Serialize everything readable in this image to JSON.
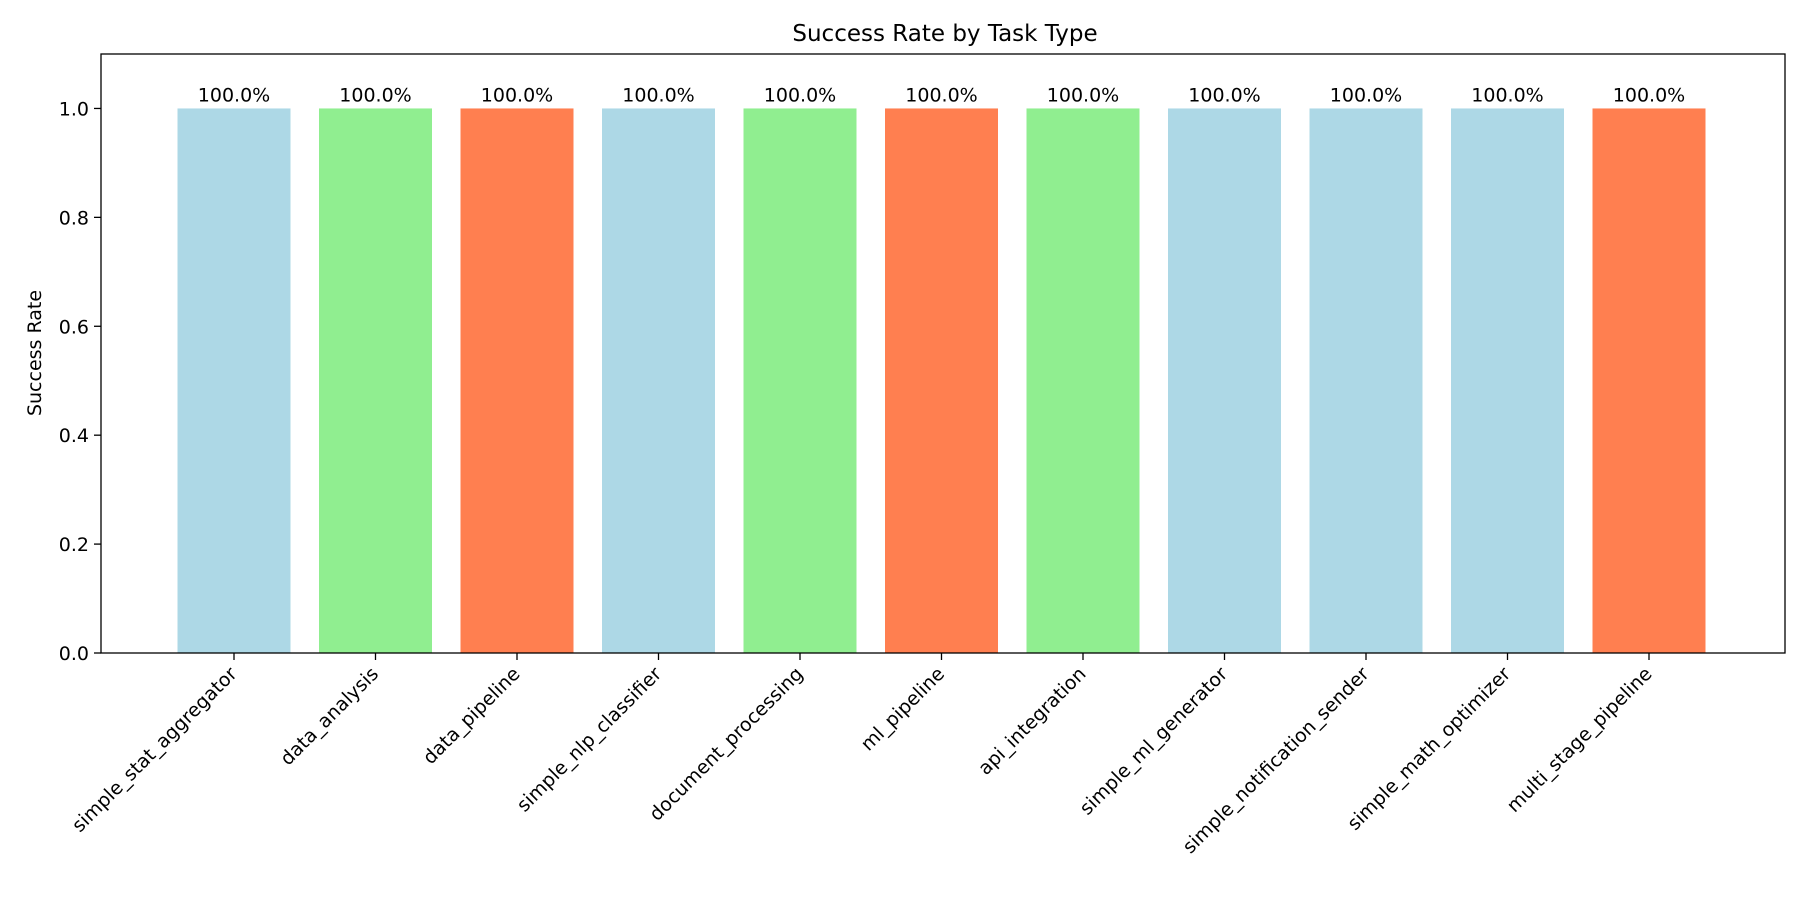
{
  "chart_data": {
    "type": "bar",
    "title": "Success Rate by Task Type",
    "xlabel": "",
    "ylabel": "Success Rate",
    "ylim": [
      0,
      1.1
    ],
    "yticks": [
      0.0,
      0.2,
      0.4,
      0.6,
      0.8,
      1.0
    ],
    "ytick_labels": [
      "0.0",
      "0.2",
      "0.4",
      "0.6",
      "0.8",
      "1.0"
    ],
    "categories": [
      "simple_stat_aggregator",
      "data_analysis",
      "data_pipeline",
      "simple_nlp_classifier",
      "document_processing",
      "ml_pipeline",
      "api_integration",
      "simple_ml_generator",
      "simple_notification_sender",
      "simple_math_optimizer",
      "multi_stage_pipeline"
    ],
    "values": [
      1.0,
      1.0,
      1.0,
      1.0,
      1.0,
      1.0,
      1.0,
      1.0,
      1.0,
      1.0,
      1.0
    ],
    "data_labels": [
      "100.0%",
      "100.0%",
      "100.0%",
      "100.0%",
      "100.0%",
      "100.0%",
      "100.0%",
      "100.0%",
      "100.0%",
      "100.0%",
      "100.0%"
    ],
    "colors": [
      "#add8e6",
      "#90ee90",
      "#ff7f50",
      "#add8e6",
      "#90ee90",
      "#ff7f50",
      "#90ee90",
      "#add8e6",
      "#add8e6",
      "#add8e6",
      "#ff7f50"
    ],
    "grid": false,
    "legend": "none"
  }
}
